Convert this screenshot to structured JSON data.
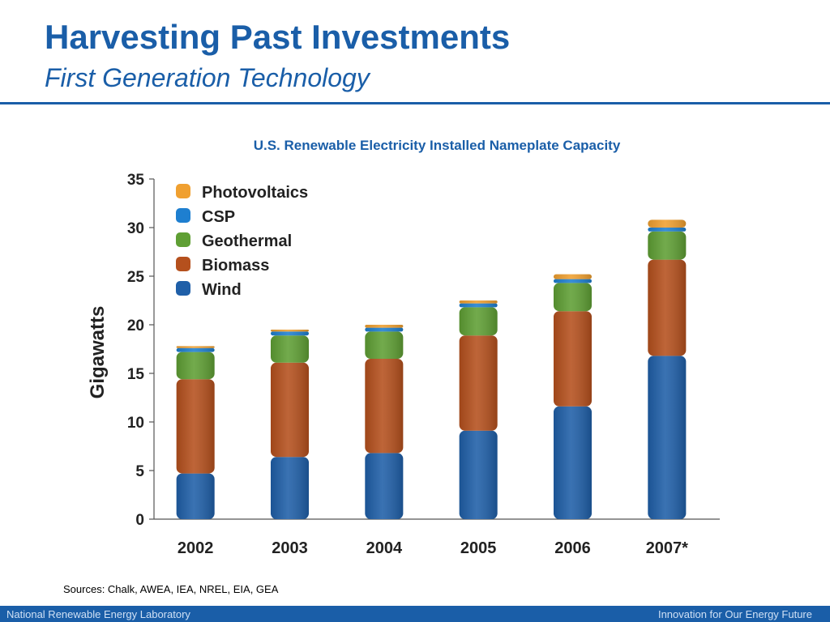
{
  "slide": {
    "title": "Harvesting Past Investments",
    "subtitle": "First Generation Technology",
    "sources": "Sources: Chalk, AWEA, IEA, NREL, EIA, GEA",
    "footer_left": "National Renewable Energy Laboratory",
    "footer_right": "Innovation for Our Energy Future"
  },
  "colors": {
    "brand_blue": "#1a5ea8",
    "Wind": "#1f5fa8",
    "Biomass": "#b5501d",
    "Geothermal": "#5f9f34",
    "CSP": "#1e7fd0",
    "Photovoltaics": "#f0a030"
  },
  "chart_data": {
    "type": "bar",
    "stacked": true,
    "title": "U.S. Renewable Electricity Installed Nameplate Capacity",
    "xlabel": "",
    "ylabel": "Gigawatts",
    "ylim": [
      0,
      35
    ],
    "yticks": [
      0,
      5,
      10,
      15,
      20,
      25,
      30,
      35
    ],
    "grid": false,
    "legend_position": "top-left",
    "categories": [
      "2002",
      "2003",
      "2004",
      "2005",
      "2006",
      "2007*"
    ],
    "series": [
      {
        "name": "Wind",
        "values": [
          4.7,
          6.4,
          6.8,
          9.1,
          11.6,
          16.8
        ]
      },
      {
        "name": "Biomass",
        "values": [
          9.7,
          9.7,
          9.7,
          9.8,
          9.8,
          9.9
        ]
      },
      {
        "name": "Geothermal",
        "values": [
          2.8,
          2.8,
          2.8,
          2.9,
          2.9,
          2.9
        ]
      },
      {
        "name": "CSP",
        "values": [
          0.4,
          0.4,
          0.4,
          0.4,
          0.4,
          0.4
        ]
      },
      {
        "name": "Photovoltaics",
        "values": [
          0.2,
          0.2,
          0.3,
          0.3,
          0.5,
          0.8
        ]
      }
    ],
    "legend_order": [
      "Photovoltaics",
      "CSP",
      "Geothermal",
      "Biomass",
      "Wind"
    ]
  }
}
